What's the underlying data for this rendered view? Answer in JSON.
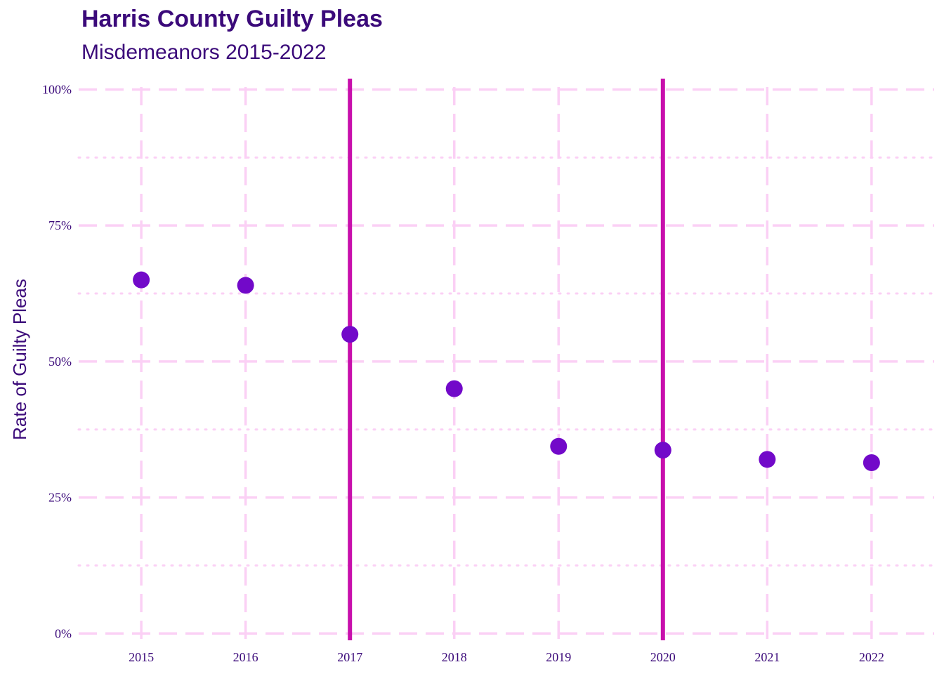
{
  "chart_data": {
    "type": "scatter",
    "title": "Harris County Guilty Pleas",
    "subtitle": "Misdemeanors 2015-2022",
    "xlabel": "",
    "ylabel": "Rate of Guilty Pleas",
    "x": [
      2015,
      2016,
      2017,
      2018,
      2019,
      2020,
      2021,
      2022
    ],
    "series": [
      {
        "values": [
          0.65,
          0.64,
          0.55,
          0.45,
          0.344,
          0.337,
          0.32,
          0.314
        ]
      }
    ],
    "x_ticks": [
      "2015",
      "2016",
      "2017",
      "2018",
      "2019",
      "2020",
      "2021",
      "2022"
    ],
    "y_ticks": [
      {
        "value": 0,
        "label": "0%"
      },
      {
        "value": 0.25,
        "label": "25%"
      },
      {
        "value": 0.5,
        "label": "50%"
      },
      {
        "value": 0.75,
        "label": "75%"
      },
      {
        "value": 1,
        "label": "100%"
      }
    ],
    "xlim": [
      2014.4,
      2022.6
    ],
    "ylim": [
      -0.01,
      1.02
    ],
    "reference_lines_x": [
      2017,
      2020
    ],
    "grid": true,
    "colors": {
      "points": "#7209c9",
      "reference_lines": "#c80fac",
      "grid": "#fbd0f5",
      "text": "#3b0a7a"
    }
  }
}
